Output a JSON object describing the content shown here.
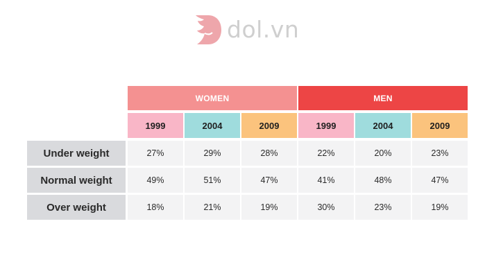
{
  "logo": {
    "text": "dol.vn",
    "color": "#e9a3a8"
  },
  "chart_data": {
    "type": "table",
    "groups": [
      {
        "name": "WOMEN",
        "color": "#f49191",
        "years": [
          "1999",
          "2004",
          "2009"
        ]
      },
      {
        "name": "MEN",
        "color": "#ed4545",
        "years": [
          "1999",
          "2004",
          "2009"
        ]
      }
    ],
    "year_colors": {
      "1999": "#f9b6c7",
      "2004": "#9fdcdd",
      "2009": "#fbc37d"
    },
    "rows": [
      {
        "label": "Under weight",
        "values": [
          "27%",
          "29%",
          "28%",
          "22%",
          "20%",
          "23%"
        ]
      },
      {
        "label": "Normal weight",
        "values": [
          "49%",
          "51%",
          "47%",
          "41%",
          "48%",
          "47%"
        ]
      },
      {
        "label": "Over weight",
        "values": [
          "18%",
          "21%",
          "19%",
          "30%",
          "23%",
          "19%"
        ]
      }
    ]
  }
}
